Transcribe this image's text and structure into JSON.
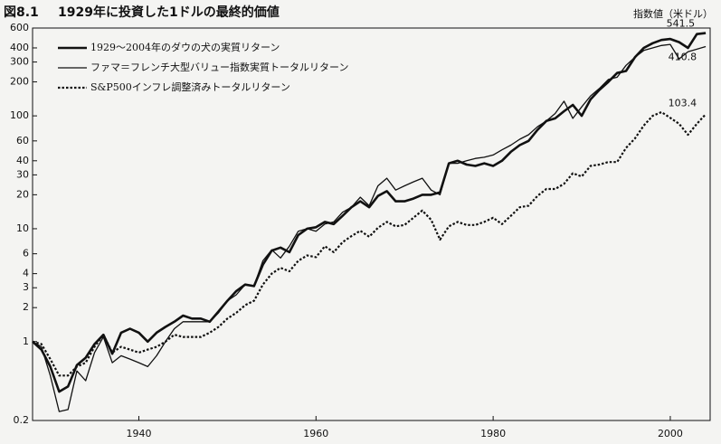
{
  "chart_data": {
    "type": "line",
    "figure_label": "図8.1",
    "title": "1929年に投資した1ドルの最終的価値",
    "y_label": "指数値（米ドル）",
    "x": [
      1928,
      1929,
      1930,
      1931,
      1932,
      1933,
      1934,
      1935,
      1936,
      1937,
      1938,
      1939,
      1940,
      1941,
      1942,
      1943,
      1944,
      1945,
      1946,
      1947,
      1948,
      1949,
      1950,
      1951,
      1952,
      1953,
      1954,
      1955,
      1956,
      1957,
      1958,
      1959,
      1960,
      1961,
      1962,
      1963,
      1964,
      1965,
      1966,
      1967,
      1968,
      1969,
      1970,
      1971,
      1972,
      1973,
      1974,
      1975,
      1976,
      1977,
      1978,
      1979,
      1980,
      1981,
      1982,
      1983,
      1984,
      1985,
      1986,
      1987,
      1988,
      1989,
      1990,
      1991,
      1992,
      1993,
      1994,
      1995,
      1996,
      1997,
      1998,
      1999,
      2000,
      2001,
      2002,
      2003,
      2004
    ],
    "series": [
      {
        "name": "1929～2004年のダウの犬の実質リターン",
        "color": "#111111",
        "line_style": "solid",
        "line_width": 2.6,
        "values": [
          1,
          0.85,
          0.6,
          0.36,
          0.4,
          0.62,
          0.72,
          0.95,
          1.15,
          0.78,
          1.2,
          1.3,
          1.2,
          1.0,
          1.2,
          1.35,
          1.5,
          1.7,
          1.6,
          1.6,
          1.5,
          1.85,
          2.3,
          2.8,
          3.2,
          3.1,
          4.8,
          6.4,
          6.8,
          6.2,
          8.8,
          10,
          10.3,
          11.5,
          11,
          13,
          15.5,
          17.5,
          15.5,
          19.5,
          21.5,
          17.5,
          17.5,
          18.5,
          20,
          20,
          21,
          38,
          40,
          37,
          36,
          38,
          36,
          40,
          48,
          55,
          60,
          75,
          90,
          95,
          110,
          125,
          100,
          140,
          170,
          200,
          240,
          250,
          330,
          400,
          440,
          470,
          480,
          450,
          400,
          530,
          541.5
        ]
      },
      {
        "name": "ファマ＝フレンチ大型バリュー指数実質トータルリターン",
        "color": "#111111",
        "line_style": "solid",
        "line_width": 1.3,
        "values": [
          1,
          0.9,
          0.5,
          0.24,
          0.25,
          0.55,
          0.45,
          0.8,
          1.1,
          0.65,
          0.75,
          0.7,
          0.65,
          0.6,
          0.75,
          1.0,
          1.3,
          1.5,
          1.5,
          1.5,
          1.5,
          1.8,
          2.3,
          2.6,
          3.2,
          3.1,
          5.2,
          6.5,
          5.5,
          7,
          9.5,
          10,
          9.5,
          11,
          11.5,
          14,
          15.5,
          19,
          16,
          24,
          28,
          22,
          24,
          26,
          28,
          22,
          20,
          38,
          38,
          40,
          42,
          43,
          45,
          50,
          55,
          62,
          68,
          80,
          90,
          105,
          135,
          95,
          120,
          150,
          175,
          210,
          220,
          280,
          330,
          380,
          400,
          420,
          430,
          320,
          370,
          390,
          410.8
        ]
      },
      {
        "name": "S&P500インフレ調整済みトータルリターン",
        "color": "#111111",
        "line_style": "dotted",
        "line_width": 2.2,
        "values": [
          1,
          0.95,
          0.7,
          0.5,
          0.5,
          0.6,
          0.65,
          0.9,
          1.15,
          0.8,
          0.9,
          0.85,
          0.8,
          0.85,
          0.9,
          1.0,
          1.15,
          1.1,
          1.1,
          1.1,
          1.2,
          1.35,
          1.6,
          1.8,
          2.1,
          2.3,
          3.2,
          4.0,
          4.5,
          4.2,
          5.2,
          5.8,
          5.6,
          7.0,
          6.2,
          7.6,
          8.6,
          9.6,
          8.5,
          10.2,
          11.5,
          10.5,
          10.8,
          12.5,
          14.5,
          12,
          8,
          10.5,
          11.5,
          10.8,
          10.8,
          11.5,
          12.5,
          11,
          13,
          15.5,
          16,
          19.5,
          22.5,
          22.5,
          25,
          31,
          29,
          36,
          37,
          39,
          39,
          52,
          63,
          82,
          100,
          108,
          96,
          85,
          68,
          85,
          103.4
        ]
      }
    ],
    "xlim": [
      1928,
      2004.5
    ],
    "xticks": [
      1940,
      1960,
      1980,
      2000
    ],
    "ylim": [
      0.2,
      600
    ],
    "log_y": true,
    "yticks": [
      0.2,
      1,
      2,
      3,
      4,
      6,
      10,
      20,
      30,
      40,
      60,
      100,
      200,
      300,
      400,
      600
    ],
    "legend": "top-left",
    "grid": false
  }
}
